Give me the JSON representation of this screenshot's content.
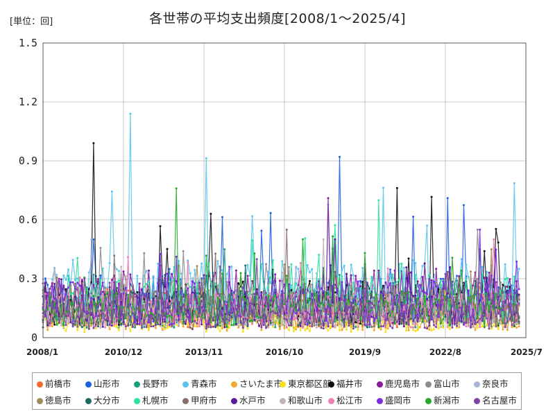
{
  "chart_data": {
    "type": "line",
    "title": "各世帯の平均支出頻度[2008/1～2025/4]",
    "unit_label": "[単位：回]",
    "ylim": [
      0,
      1.5
    ],
    "yticks": [
      "0",
      "0.3",
      "0.6",
      "0.9",
      "1.2",
      "1.5"
    ],
    "x_range": [
      "2008/1",
      "2025/7"
    ],
    "xticks": [
      "2008/1",
      "2010/12",
      "2013/11",
      "2016/10",
      "2019/9",
      "2022/8",
      "2025/7"
    ],
    "grid": true,
    "legend_position": "bottom",
    "series": [
      {
        "name": "前橋市",
        "color": "#f26b2a",
        "level": 0.15,
        "peak": 0.3
      },
      {
        "name": "山形市",
        "color": "#1e5fe0",
        "level": 0.2,
        "peak": 0.92
      },
      {
        "name": "長野市",
        "color": "#1aa07a",
        "level": 0.14,
        "peak": 0.45
      },
      {
        "name": "青森市",
        "color": "#5bc4ee",
        "level": 0.25,
        "peak": 1.14
      },
      {
        "name": "さいたま市",
        "color": "#f0a830",
        "level": 0.1,
        "peak": 0.3
      },
      {
        "name": "東京都区部",
        "color": "#f5e21a",
        "level": 0.08,
        "peak": 0.25
      },
      {
        "name": "福井市",
        "color": "#111111",
        "level": 0.18,
        "peak": 0.99
      },
      {
        "name": "鹿児島市",
        "color": "#8b1a9e",
        "level": 0.22,
        "peak": 0.71
      },
      {
        "name": "富山市",
        "color": "#8c8c8c",
        "level": 0.18,
        "peak": 0.55
      },
      {
        "name": "奈良市",
        "color": "#a9b6dc",
        "level": 0.15,
        "peak": 0.5
      },
      {
        "name": "徳島市",
        "color": "#a08a5c",
        "level": 0.16,
        "peak": 0.45
      },
      {
        "name": "大分市",
        "color": "#1e6b62",
        "level": 0.15,
        "peak": 0.45
      },
      {
        "name": "札幌市",
        "color": "#2ee3a0",
        "level": 0.2,
        "peak": 0.7
      },
      {
        "name": "甲府市",
        "color": "#8a6e6e",
        "level": 0.15,
        "peak": 0.55
      },
      {
        "name": "水戸市",
        "color": "#5a1aa0",
        "level": 0.15,
        "peak": 0.5
      },
      {
        "name": "和歌山市",
        "color": "#c0b4b4",
        "level": 0.14,
        "peak": 0.5
      },
      {
        "name": "松江市",
        "color": "#ee7fb6",
        "level": 0.14,
        "peak": 0.5
      },
      {
        "name": "盛岡市",
        "color": "#7a2ee0",
        "level": 0.18,
        "peak": 0.55
      },
      {
        "name": "新潟市",
        "color": "#28a828",
        "level": 0.15,
        "peak": 0.76
      },
      {
        "name": "名古屋市",
        "color": "#7e44a0",
        "level": 0.12,
        "peak": 0.4
      }
    ]
  }
}
